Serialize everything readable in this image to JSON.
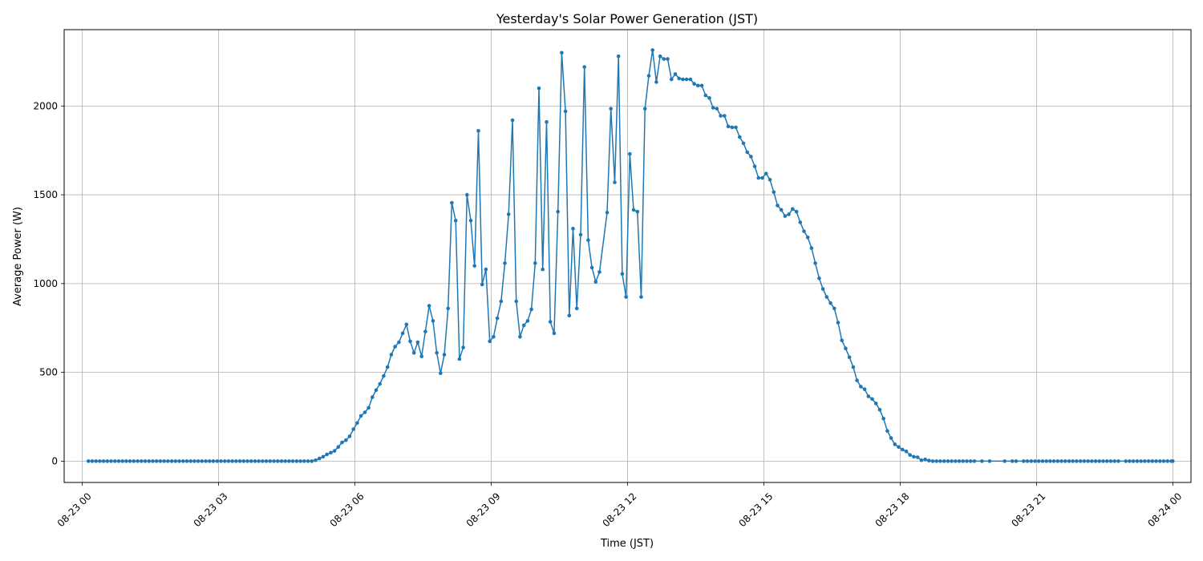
{
  "chart_data": {
    "type": "line",
    "title": "Yesterday's Solar Power Generation (JST)",
    "xlabel": "Time (JST)",
    "ylabel": "Average Power (W)",
    "x_unit": "hours",
    "xlim": [
      -0.4,
      24.4
    ],
    "ylim": [
      -120,
      2430
    ],
    "x_ticks": [
      {
        "value": 0,
        "label": "08-23 00"
      },
      {
        "value": 3,
        "label": "08-23 03"
      },
      {
        "value": 6,
        "label": "08-23 06"
      },
      {
        "value": 9,
        "label": "08-23 09"
      },
      {
        "value": 12,
        "label": "08-23 12"
      },
      {
        "value": 15,
        "label": "08-23 15"
      },
      {
        "value": 18,
        "label": "08-23 18"
      },
      {
        "value": 21,
        "label": "08-23 21"
      },
      {
        "value": 24,
        "label": "08-24 00"
      }
    ],
    "y_ticks": [
      {
        "value": 0,
        "label": "0"
      },
      {
        "value": 500,
        "label": "500"
      },
      {
        "value": 1000,
        "label": "1000"
      },
      {
        "value": 1500,
        "label": "1500"
      },
      {
        "value": 2000,
        "label": "2000"
      }
    ],
    "grid": true,
    "series": [
      {
        "color": "#1f77b4",
        "points": [
          [
            0.133,
            0
          ],
          [
            0.217,
            0
          ],
          [
            0.3,
            0
          ],
          [
            0.383,
            0
          ],
          [
            0.467,
            0
          ],
          [
            0.55,
            0
          ],
          [
            0.633,
            0
          ],
          [
            0.717,
            0
          ],
          [
            0.8,
            0
          ],
          [
            0.883,
            0
          ],
          [
            0.967,
            0
          ],
          [
            1.05,
            0
          ],
          [
            1.133,
            0
          ],
          [
            1.217,
            0
          ],
          [
            1.3,
            0
          ],
          [
            1.383,
            0
          ],
          [
            1.467,
            0
          ],
          [
            1.55,
            0
          ],
          [
            1.633,
            0
          ],
          [
            1.717,
            0
          ],
          [
            1.8,
            0
          ],
          [
            1.883,
            0
          ],
          [
            1.967,
            0
          ],
          [
            2.05,
            0
          ],
          [
            2.133,
            0
          ],
          [
            2.217,
            0
          ],
          [
            2.3,
            0
          ],
          [
            2.383,
            0
          ],
          [
            2.467,
            0
          ],
          [
            2.55,
            0
          ],
          [
            2.633,
            0
          ],
          [
            2.717,
            0
          ],
          [
            2.8,
            0
          ],
          [
            2.883,
            0
          ],
          [
            2.967,
            0
          ],
          [
            3.05,
            0
          ],
          [
            3.133,
            0
          ],
          [
            3.217,
            0
          ],
          [
            3.3,
            0
          ],
          [
            3.383,
            0
          ],
          [
            3.467,
            0
          ],
          [
            3.55,
            0
          ],
          [
            3.633,
            0
          ],
          [
            3.717,
            0
          ],
          [
            3.8,
            0
          ],
          [
            3.883,
            0
          ],
          [
            3.967,
            0
          ],
          [
            4.05,
            0
          ],
          [
            4.133,
            0
          ],
          [
            4.217,
            0
          ],
          [
            4.3,
            0
          ],
          [
            4.383,
            0
          ],
          [
            4.467,
            0
          ],
          [
            4.55,
            0
          ],
          [
            4.633,
            0
          ],
          [
            4.717,
            0
          ],
          [
            4.8,
            0
          ],
          [
            4.883,
            0
          ],
          [
            4.967,
            0
          ],
          [
            5.05,
            0
          ],
          [
            5.133,
            5
          ],
          [
            5.217,
            15
          ],
          [
            5.3,
            25
          ],
          [
            5.383,
            38
          ],
          [
            5.467,
            48
          ],
          [
            5.55,
            58
          ],
          [
            5.633,
            80
          ],
          [
            5.717,
            105
          ],
          [
            5.8,
            118
          ],
          [
            5.883,
            140
          ],
          [
            5.967,
            180
          ],
          [
            6.05,
            215
          ],
          [
            6.133,
            255
          ],
          [
            6.217,
            275
          ],
          [
            6.3,
            300
          ],
          [
            6.383,
            360
          ],
          [
            6.467,
            400
          ],
          [
            6.55,
            435
          ],
          [
            6.633,
            480
          ],
          [
            6.717,
            530
          ],
          [
            6.8,
            600
          ],
          [
            6.883,
            645
          ],
          [
            6.967,
            670
          ],
          [
            7.05,
            720
          ],
          [
            7.133,
            770
          ],
          [
            7.217,
            675
          ],
          [
            7.3,
            610
          ],
          [
            7.383,
            670
          ],
          [
            7.467,
            590
          ],
          [
            7.55,
            730
          ],
          [
            7.633,
            875
          ],
          [
            7.717,
            790
          ],
          [
            7.8,
            610
          ],
          [
            7.883,
            495
          ],
          [
            7.967,
            600
          ],
          [
            8.05,
            860
          ],
          [
            8.133,
            1455
          ],
          [
            8.217,
            1355
          ],
          [
            8.3,
            575
          ],
          [
            8.383,
            640
          ],
          [
            8.467,
            1500
          ],
          [
            8.55,
            1355
          ],
          [
            8.633,
            1100
          ],
          [
            8.717,
            1860
          ],
          [
            8.8,
            995
          ],
          [
            8.883,
            1080
          ],
          [
            8.967,
            675
          ],
          [
            9.05,
            700
          ],
          [
            9.133,
            805
          ],
          [
            9.217,
            900
          ],
          [
            9.3,
            1115
          ],
          [
            9.383,
            1390
          ],
          [
            9.467,
            1920
          ],
          [
            9.55,
            900
          ],
          [
            9.633,
            700
          ],
          [
            9.717,
            765
          ],
          [
            9.8,
            790
          ],
          [
            9.883,
            855
          ],
          [
            9.967,
            1115
          ],
          [
            10.05,
            2100
          ],
          [
            10.133,
            1080
          ],
          [
            10.217,
            1910
          ],
          [
            10.3,
            785
          ],
          [
            10.383,
            720
          ],
          [
            10.467,
            1405
          ],
          [
            10.55,
            2300
          ],
          [
            10.633,
            1970
          ],
          [
            10.717,
            820
          ],
          [
            10.8,
            1310
          ],
          [
            10.883,
            860
          ],
          [
            10.967,
            1275
          ],
          [
            11.05,
            2220
          ],
          [
            11.133,
            1245
          ],
          [
            11.217,
            1090
          ],
          [
            11.3,
            1010
          ],
          [
            11.383,
            1065
          ],
          [
            11.55,
            1400
          ],
          [
            11.633,
            1985
          ],
          [
            11.717,
            1570
          ],
          [
            11.8,
            2280
          ],
          [
            11.883,
            1055
          ],
          [
            11.967,
            925
          ],
          [
            12.05,
            1730
          ],
          [
            12.133,
            1415
          ],
          [
            12.217,
            1405
          ],
          [
            12.3,
            925
          ],
          [
            12.383,
            1985
          ],
          [
            12.467,
            2170
          ],
          [
            12.55,
            2315
          ],
          [
            12.633,
            2135
          ],
          [
            12.717,
            2280
          ],
          [
            12.8,
            2265
          ],
          [
            12.883,
            2265
          ],
          [
            12.967,
            2150
          ],
          [
            13.05,
            2180
          ],
          [
            13.133,
            2155
          ],
          [
            13.217,
            2150
          ],
          [
            13.3,
            2150
          ],
          [
            13.383,
            2150
          ],
          [
            13.467,
            2125
          ],
          [
            13.55,
            2115
          ],
          [
            13.633,
            2115
          ],
          [
            13.717,
            2060
          ],
          [
            13.8,
            2045
          ],
          [
            13.883,
            1990
          ],
          [
            13.967,
            1985
          ],
          [
            14.05,
            1945
          ],
          [
            14.133,
            1945
          ],
          [
            14.217,
            1885
          ],
          [
            14.3,
            1880
          ],
          [
            14.383,
            1880
          ],
          [
            14.467,
            1825
          ],
          [
            14.55,
            1790
          ],
          [
            14.633,
            1740
          ],
          [
            14.717,
            1715
          ],
          [
            14.8,
            1660
          ],
          [
            14.883,
            1595
          ],
          [
            14.967,
            1595
          ],
          [
            15.05,
            1620
          ],
          [
            15.133,
            1585
          ],
          [
            15.217,
            1515
          ],
          [
            15.3,
            1440
          ],
          [
            15.383,
            1415
          ],
          [
            15.467,
            1380
          ],
          [
            15.55,
            1390
          ],
          [
            15.633,
            1420
          ],
          [
            15.717,
            1405
          ],
          [
            15.8,
            1345
          ],
          [
            15.883,
            1295
          ],
          [
            15.967,
            1260
          ],
          [
            16.05,
            1200
          ],
          [
            16.133,
            1115
          ],
          [
            16.217,
            1030
          ],
          [
            16.3,
            970
          ],
          [
            16.383,
            925
          ],
          [
            16.467,
            890
          ],
          [
            16.55,
            860
          ],
          [
            16.633,
            780
          ],
          [
            16.717,
            680
          ],
          [
            16.8,
            635
          ],
          [
            16.883,
            585
          ],
          [
            16.967,
            530
          ],
          [
            17.05,
            455
          ],
          [
            17.133,
            420
          ],
          [
            17.217,
            405
          ],
          [
            17.3,
            365
          ],
          [
            17.383,
            350
          ],
          [
            17.467,
            325
          ],
          [
            17.55,
            290
          ],
          [
            17.633,
            240
          ],
          [
            17.717,
            170
          ],
          [
            17.8,
            130
          ],
          [
            17.883,
            95
          ],
          [
            17.967,
            80
          ],
          [
            18.05,
            65
          ],
          [
            18.133,
            55
          ],
          [
            18.217,
            35
          ],
          [
            18.3,
            25
          ],
          [
            18.383,
            22
          ],
          [
            18.467,
            5
          ],
          [
            18.55,
            10
          ],
          [
            18.633,
            3
          ],
          [
            18.717,
            0
          ],
          [
            18.8,
            0
          ],
          [
            18.883,
            0
          ],
          [
            18.967,
            0
          ],
          [
            19.05,
            0
          ],
          [
            19.133,
            0
          ],
          [
            19.217,
            0
          ],
          [
            19.3,
            0
          ],
          [
            19.383,
            0
          ],
          [
            19.467,
            0
          ],
          [
            19.55,
            0
          ],
          [
            19.633,
            0
          ],
          [
            19.8,
            0
          ],
          [
            19.967,
            0
          ],
          [
            20.3,
            0
          ],
          [
            20.467,
            0
          ],
          [
            20.55,
            0
          ],
          [
            20.717,
            0
          ],
          [
            20.8,
            0
          ],
          [
            20.883,
            0
          ],
          [
            20.967,
            0
          ],
          [
            21.05,
            0
          ],
          [
            21.133,
            0
          ],
          [
            21.217,
            0
          ],
          [
            21.3,
            0
          ],
          [
            21.383,
            0
          ],
          [
            21.467,
            0
          ],
          [
            21.55,
            0
          ],
          [
            21.633,
            0
          ],
          [
            21.717,
            0
          ],
          [
            21.8,
            0
          ],
          [
            21.883,
            0
          ],
          [
            21.967,
            0
          ],
          [
            22.05,
            0
          ],
          [
            22.133,
            0
          ],
          [
            22.217,
            0
          ],
          [
            22.3,
            0
          ],
          [
            22.383,
            0
          ],
          [
            22.467,
            0
          ],
          [
            22.55,
            0
          ],
          [
            22.633,
            0
          ],
          [
            22.717,
            0
          ],
          [
            22.8,
            0
          ],
          [
            22.967,
            0
          ],
          [
            23.05,
            0
          ],
          [
            23.133,
            0
          ],
          [
            23.217,
            0
          ],
          [
            23.3,
            0
          ],
          [
            23.383,
            0
          ],
          [
            23.467,
            0
          ],
          [
            23.55,
            0
          ],
          [
            23.633,
            0
          ],
          [
            23.717,
            0
          ],
          [
            23.8,
            0
          ],
          [
            23.883,
            0
          ],
          [
            23.967,
            0
          ],
          [
            24.0,
            0
          ]
        ]
      }
    ]
  }
}
